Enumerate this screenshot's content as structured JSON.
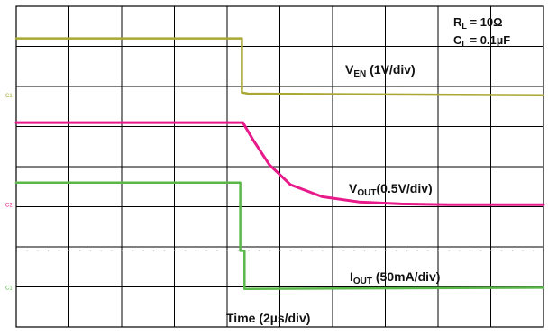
{
  "chart_data": {
    "type": "line",
    "title": "",
    "xlabel": "Time (2µs/div)",
    "ylabel": "",
    "grid": true,
    "x_divisions": 10,
    "y_divisions": 8,
    "x_unit_per_div": "2µs",
    "conditions": {
      "rl": {
        "symbol": "R",
        "sub": "L",
        "text": " = 10Ω"
      },
      "cl": {
        "symbol": "C",
        "sub": "L",
        "text": " = 0.1µF"
      }
    },
    "series": [
      {
        "key": "ven",
        "label_main": "V",
        "label_sub": "EN",
        "label_rest": " (1V/div)",
        "marker": "C1",
        "color": "#a8a832",
        "x_div": [
          0,
          4.28,
          4.28,
          4.4,
          10
        ],
        "y_div": [
          7.2,
          7.2,
          5.85,
          5.82,
          5.78
        ]
      },
      {
        "key": "vout",
        "label_main": "V",
        "label_sub": "OUT",
        "label_rest": "(0.5V/div)",
        "marker": "C2",
        "color": "#e8198a",
        "x_div": [
          0,
          4.3,
          4.5,
          4.8,
          5.2,
          5.8,
          6.5,
          7.3,
          8.2,
          10
        ],
        "y_div": [
          5.1,
          5.1,
          4.65,
          4.05,
          3.55,
          3.25,
          3.12,
          3.07,
          3.05,
          3.05
        ]
      },
      {
        "key": "iout",
        "label_main": "I",
        "label_sub": "OUT",
        "label_rest": " (50mA/div)",
        "marker": "C1",
        "color": "#5ab84a",
        "x_div": [
          0,
          4.25,
          4.25,
          4.33,
          4.33,
          10
        ],
        "y_div": [
          3.6,
          3.6,
          1.9,
          1.9,
          0.95,
          0.98
        ]
      }
    ]
  }
}
